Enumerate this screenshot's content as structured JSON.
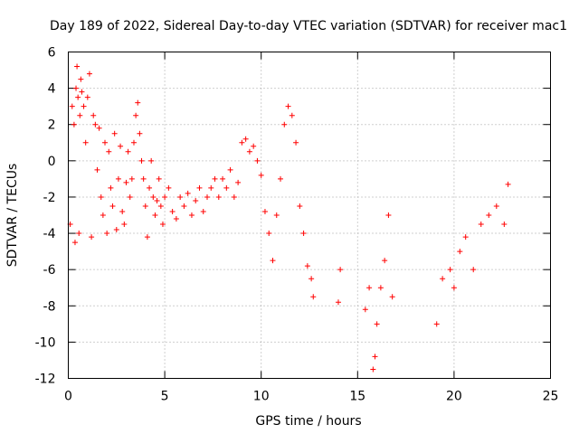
{
  "chart_data": {
    "type": "scatter",
    "title": "Day 189 of 2022, Sidereal Day-to-day VTEC variation (SDTVAR) for receiver mac1",
    "xlabel": "GPS time / hours",
    "ylabel": "SDTVAR / TECUs",
    "xlim": [
      0,
      25
    ],
    "ylim": [
      -12,
      6
    ],
    "xticks": [
      0,
      5,
      10,
      15,
      20,
      25
    ],
    "yticks": [
      -12,
      -10,
      -8,
      -6,
      -4,
      -2,
      0,
      2,
      4,
      6
    ],
    "x_tick_labels": [
      "0",
      "5",
      "10",
      "15",
      "20",
      "25"
    ],
    "y_tick_labels": [
      "-12",
      "-10",
      "-8",
      "-6",
      "-4",
      "-2",
      "0",
      "2",
      "4",
      "6"
    ],
    "grid": true,
    "marker": "+",
    "color": "#ff0000",
    "series": [
      {
        "name": "mac1",
        "x": [
          0.1,
          0.2,
          0.3,
          0.35,
          0.4,
          0.45,
          0.5,
          0.55,
          0.6,
          0.65,
          0.7,
          0.8,
          0.9,
          1.0,
          1.1,
          1.2,
          1.3,
          1.4,
          1.5,
          1.6,
          1.7,
          1.8,
          1.9,
          2.0,
          2.1,
          2.2,
          2.3,
          2.4,
          2.5,
          2.6,
          2.7,
          2.8,
          2.9,
          3.0,
          3.1,
          3.2,
          3.3,
          3.4,
          3.5,
          3.6,
          3.7,
          3.8,
          3.9,
          4.0,
          4.1,
          4.2,
          4.3,
          4.4,
          4.5,
          4.6,
          4.7,
          4.8,
          4.9,
          5.0,
          5.2,
          5.4,
          5.6,
          5.8,
          6.0,
          6.2,
          6.4,
          6.6,
          6.8,
          7.0,
          7.2,
          7.4,
          7.6,
          7.8,
          8.0,
          8.2,
          8.4,
          8.6,
          8.8,
          9.0,
          9.2,
          9.4,
          9.6,
          9.8,
          10.0,
          10.2,
          10.4,
          10.6,
          10.8,
          11.0,
          11.2,
          11.4,
          11.6,
          11.8,
          12.0,
          12.2,
          12.4,
          12.6,
          12.7,
          14.0,
          14.1,
          15.4,
          15.6,
          15.8,
          15.9,
          16.0,
          16.2,
          16.4,
          16.6,
          16.8,
          19.1,
          19.4,
          19.8,
          20.0,
          20.3,
          20.6,
          21.0,
          21.4,
          21.8,
          22.2,
          22.6,
          22.8
        ],
        "y": [
          -3.5,
          3.0,
          2.0,
          -4.5,
          4.0,
          5.2,
          3.5,
          -4.0,
          2.5,
          4.5,
          3.8,
          3.0,
          1.0,
          3.5,
          4.8,
          -4.2,
          2.5,
          2.0,
          -0.5,
          1.8,
          -2.0,
          -3.0,
          1.0,
          -4.0,
          0.5,
          -1.5,
          -2.5,
          1.5,
          -3.8,
          -1.0,
          0.8,
          -2.8,
          -3.5,
          -1.2,
          0.5,
          -2.0,
          -1.0,
          1.0,
          2.5,
          3.2,
          1.5,
          0.0,
          -1.0,
          -2.5,
          -4.2,
          -1.5,
          0.0,
          -2.0,
          -3.0,
          -2.2,
          -1.0,
          -2.5,
          -3.5,
          -2.0,
          -1.5,
          -2.8,
          -3.2,
          -2.0,
          -2.5,
          -1.8,
          -3.0,
          -2.2,
          -1.5,
          -2.8,
          -2.0,
          -1.5,
          -1.0,
          -2.0,
          -1.0,
          -1.5,
          -0.5,
          -2.0,
          -1.2,
          1.0,
          1.2,
          0.5,
          0.8,
          0.0,
          -0.8,
          -2.8,
          -4.0,
          -5.5,
          -3.0,
          -1.0,
          2.0,
          3.0,
          2.5,
          1.0,
          -2.5,
          -4.0,
          -5.8,
          -6.5,
          -7.5,
          -7.8,
          -6.0,
          -8.2,
          -7.0,
          -11.5,
          -10.8,
          -9.0,
          -7.0,
          -5.5,
          -3.0,
          -7.5,
          -9.0,
          -6.5,
          -6.0,
          -7.0,
          -5.0,
          -4.2,
          -6.0,
          -3.5,
          -3.0,
          -2.5,
          -3.5,
          -1.3
        ]
      }
    ]
  }
}
